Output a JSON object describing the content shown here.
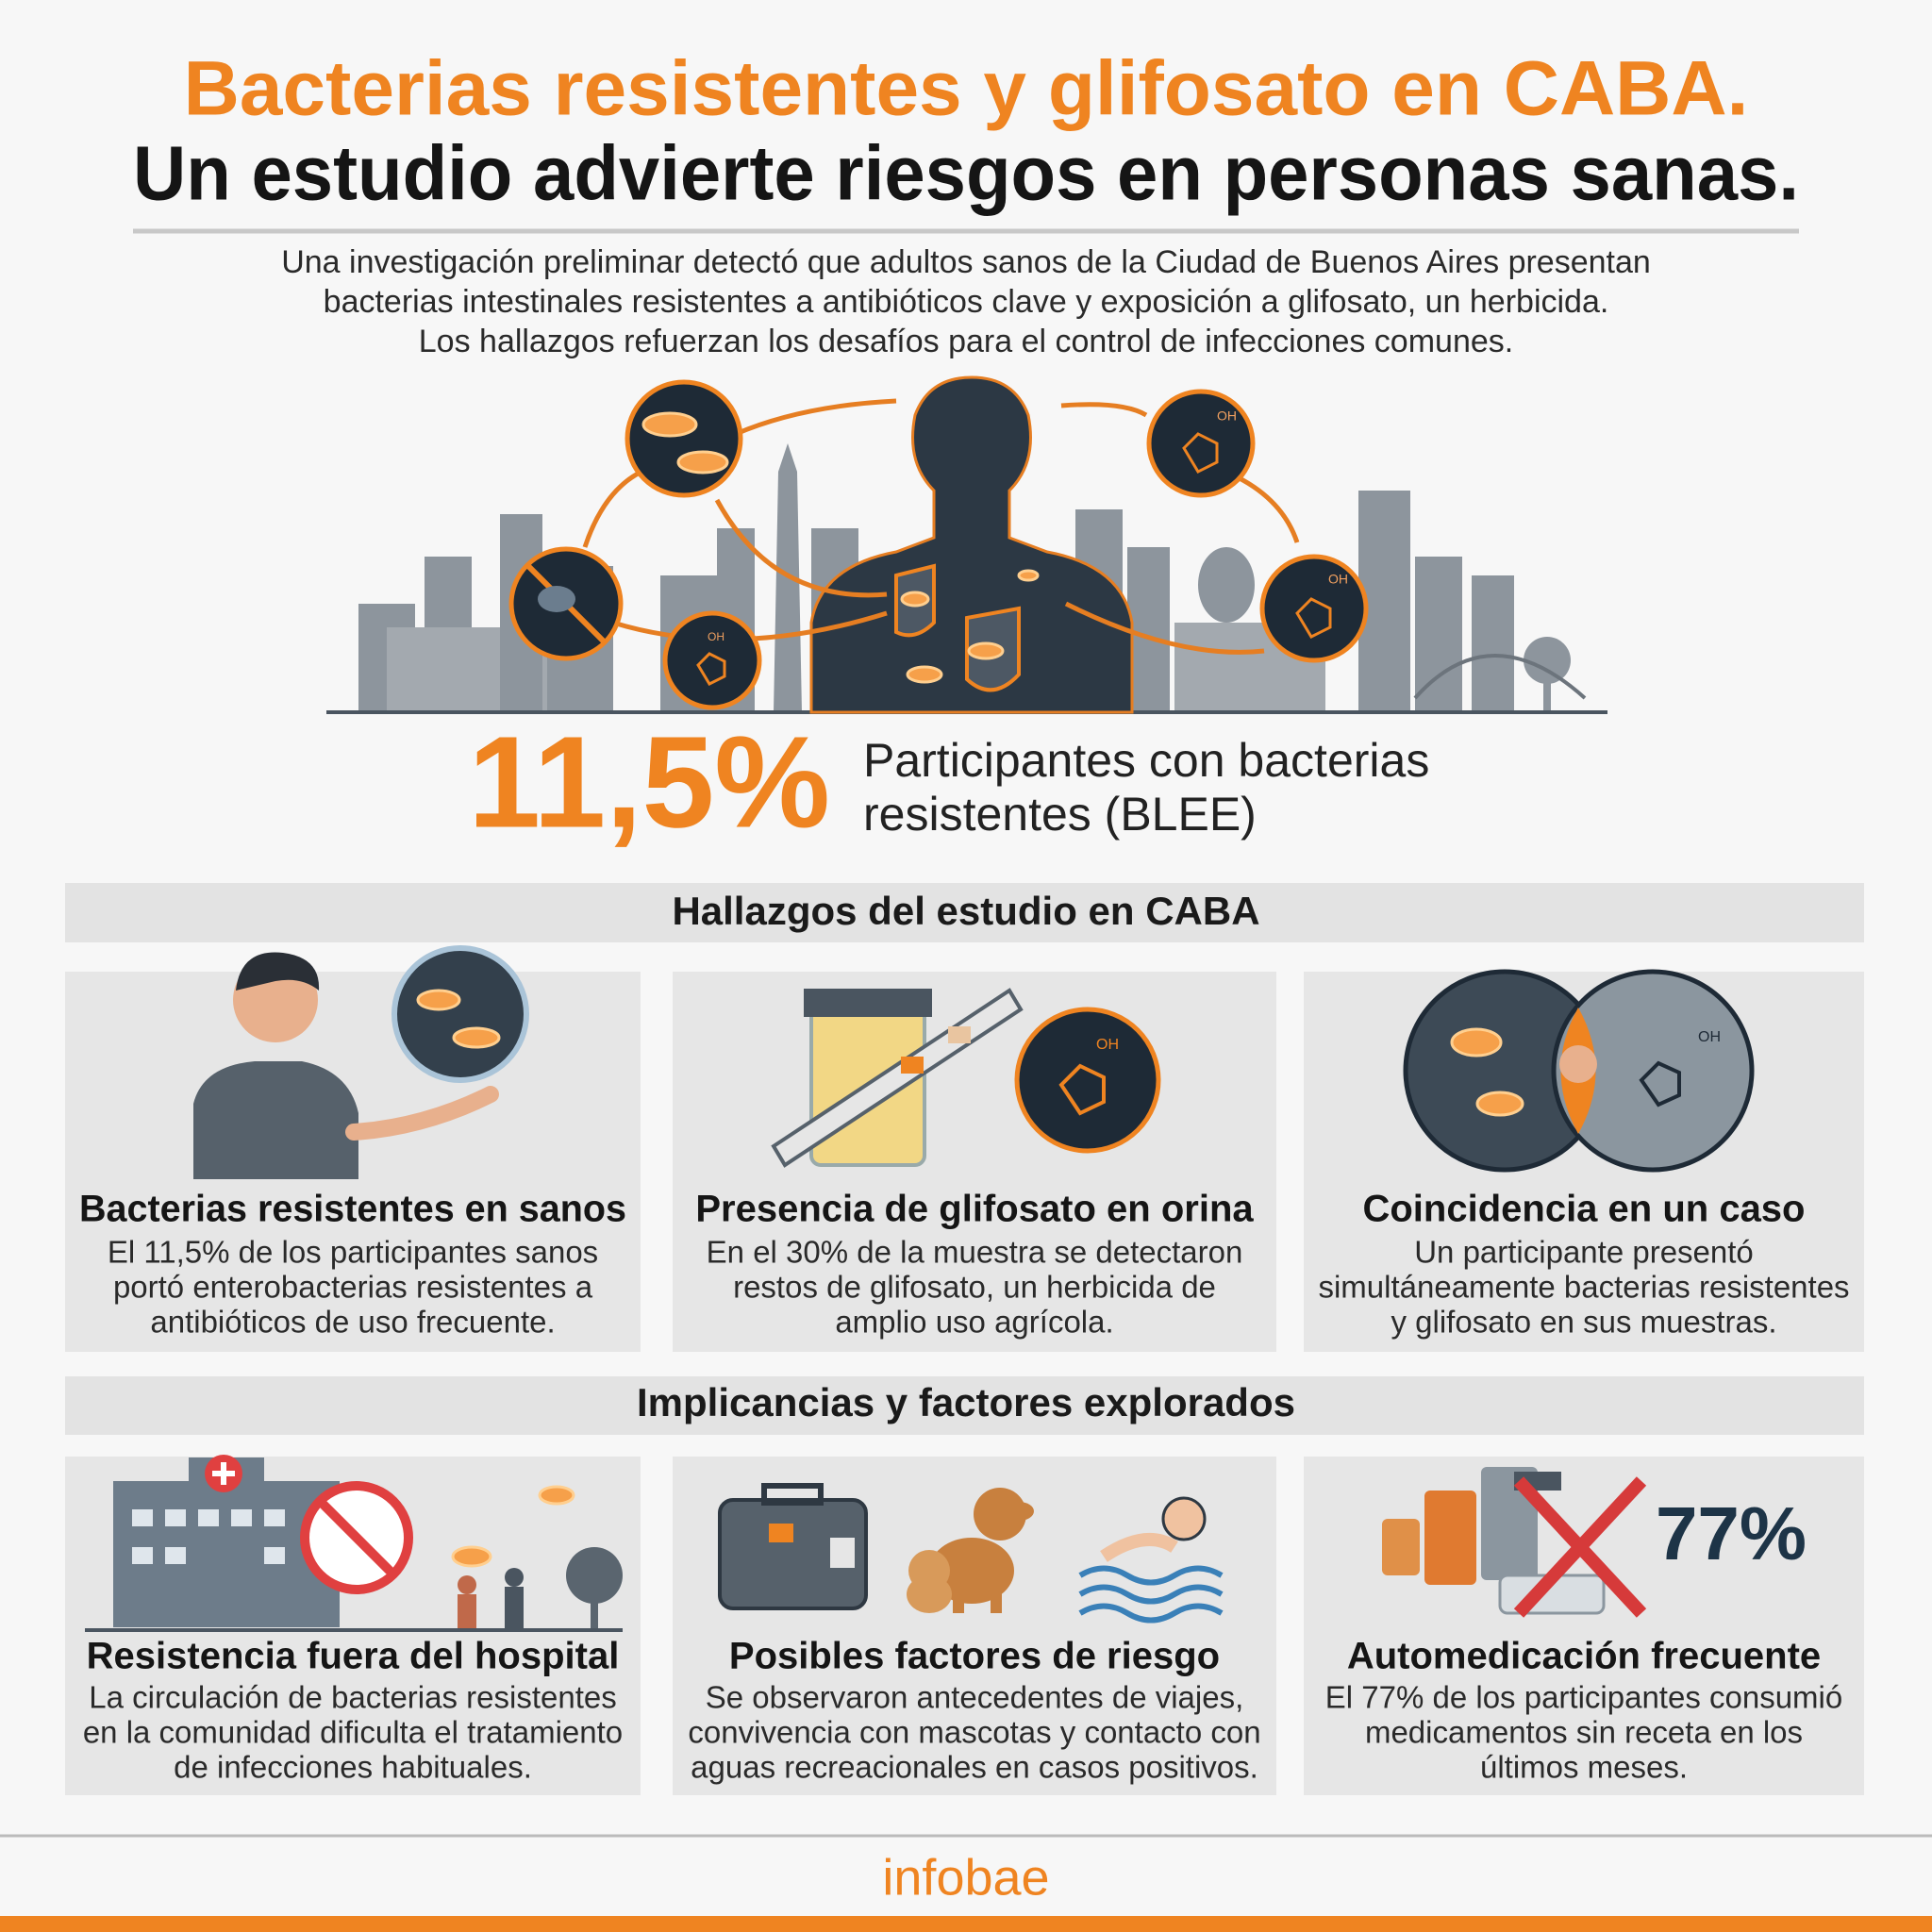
{
  "header": {
    "title": "Bacterias resistentes y glifosato en CABA.",
    "subtitle": "Un estudio advierte riesgos en personas sanas.",
    "intro": [
      "Una investigación preliminar detectó que adultos sanos de la Ciudad de Buenos Aires presentan",
      "bacterias intestinales resistentes a antibióticos clave y exposición a glifosato, un herbicida.",
      "Los hallazgos refuerzan los desafíos para el control de infecciones comunes."
    ]
  },
  "illustration": {
    "molecule_label": "OH"
  },
  "highlight": {
    "value": "11,5%",
    "label": [
      "Participantes con bacterias",
      "resistentes (BLEE)"
    ]
  },
  "sections": [
    {
      "heading": "Hallazgos del estudio en CABA",
      "cards": [
        {
          "title": "Bacterias resistentes en sanos",
          "body": [
            "El 11,5% de los participantes sanos",
            "portó enterobacterias resistentes a",
            "antibióticos de uso frecuente."
          ]
        },
        {
          "title": "Presencia de glifosato en orina",
          "body": [
            "En el 30% de la muestra se detectaron",
            "restos de glifosato, un herbicida de",
            "amplio uso agrícola."
          ]
        },
        {
          "title": "Coincidencia en un caso",
          "body": [
            "Un participante presentó",
            "simultáneamente bacterias resistentes",
            "y glifosato en sus muestras."
          ]
        }
      ]
    },
    {
      "heading": "Implicancias y factores explorados",
      "cards": [
        {
          "title": "Resistencia fuera del hospital",
          "body": [
            "La circulación de bacterias resistentes",
            "en la comunidad dificulta el tratamiento",
            "de infecciones habituales."
          ]
        },
        {
          "title": "Posibles factores de riesgo",
          "body": [
            "Se observaron antecedentes de viajes,",
            "convivencia con mascotas y contacto con",
            "aguas recreacionales en casos positivos."
          ]
        },
        {
          "title": "Automedicación frecuente",
          "stat": "77%",
          "body": [
            "El 77% de los participantes consumió",
            "medicamentos sin receta en los",
            "últimos meses."
          ]
        }
      ]
    }
  ],
  "footer": {
    "brand": "infobae"
  }
}
